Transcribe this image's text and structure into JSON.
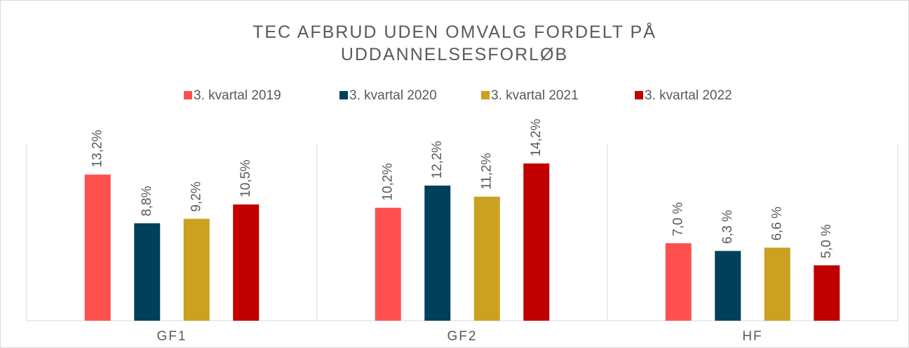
{
  "chart_data": {
    "type": "bar",
    "title": "TEC AFBRUD UDEN OMVALG FORDELT PÅ UDDANNELSESFORLØB",
    "categories": [
      "GF1",
      "GF2",
      "HF"
    ],
    "series": [
      {
        "name": "3. kvartal 2019",
        "color": "#ff5050",
        "values": [
          13.2,
          10.2,
          7.0
        ],
        "value_labels": [
          "13,2%",
          "10,2%",
          "7,0 %"
        ]
      },
      {
        "name": "3. kvartal 2020",
        "color": "#00405a",
        "values": [
          8.8,
          12.2,
          6.3
        ],
        "value_labels": [
          "8,8%",
          "12,2%",
          "6,3 %"
        ]
      },
      {
        "name": "3. kvartal 2021",
        "color": "#cca020",
        "values": [
          9.2,
          11.2,
          6.6
        ],
        "value_labels": [
          "9,2%",
          "11,2%",
          "6,6 %"
        ]
      },
      {
        "name": "3. kvartal 2022",
        "color": "#c00000",
        "values": [
          10.5,
          14.2,
          5.0
        ],
        "value_labels": [
          "10,5%",
          "14,2%",
          "5,0 %"
        ]
      }
    ],
    "ylim": [
      0,
      16
    ],
    "legend": "top"
  }
}
